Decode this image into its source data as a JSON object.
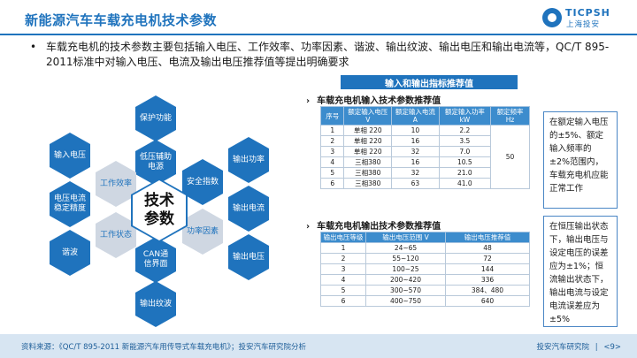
{
  "header": {
    "title": "新能源汽车车载充电机技术参数",
    "logo_text": "TICPSH",
    "logo_subtext": "上海投安",
    "accent_color": "#1f73bd"
  },
  "bullet": {
    "symbol": "•",
    "text": "车载充电机的技术参数主要包括输入电压、工作效率、功率因素、谐波、输出纹波、输出电压和输出电流等，QC/T 895-2011标准中对输入电压、电流及输出电压推荐值等提出明确要求"
  },
  "hexagons": {
    "center": "技术参数",
    "items": [
      "保护功能",
      "输入电压",
      "低压辅助电源",
      "输出功率",
      "工作效率",
      "电压电流稳定精度",
      "安全指数",
      "输出电流",
      "工作状态",
      "功率因素",
      "谐波",
      "CAN通信界面",
      "输出电压",
      "输出纹波"
    ]
  },
  "section_banner": "输入和输出指标推荐值",
  "input_table": {
    "title": "车载充电机输入技术参数推荐值",
    "headers": [
      "序号",
      "额定输入电压 V",
      "额定输入电流 A",
      "额定输入功率 kW",
      "额定频率 Hz"
    ],
    "rows": [
      [
        "1",
        "单相 220",
        "10",
        "2.2"
      ],
      [
        "2",
        "单相 220",
        "16",
        "3.5"
      ],
      [
        "3",
        "单相 220",
        "32",
        "7.0"
      ],
      [
        "4",
        "三相380",
        "16",
        "10.5"
      ],
      [
        "5",
        "三相380",
        "32",
        "21.0"
      ],
      [
        "6",
        "三相380",
        "63",
        "41.0"
      ]
    ],
    "frequency": "50",
    "note": "在额定输入电压的±5%、额定输入频率的±2%范围内，车载充电机应能正常工作"
  },
  "output_table": {
    "title": "车载充电机输出技术参数推荐值",
    "headers": [
      "输出电压等级",
      "输出电压范围 V",
      "输出电压推荐值"
    ],
    "rows": [
      [
        "1",
        "24~65",
        "48"
      ],
      [
        "2",
        "55~120",
        "72"
      ],
      [
        "3",
        "100~25",
        "144"
      ],
      [
        "4",
        "200~420",
        "336"
      ],
      [
        "5",
        "300~570",
        "384、480"
      ],
      [
        "6",
        "400~750",
        "640"
      ]
    ],
    "note": "在恒压输出状态下，输出电压与设定电压的误差应为±1%；恒流输出状态下，输出电流与设定电流误差应为±5%"
  },
  "footer": {
    "source": "资料来源：《QC/T 895-2011 新能源汽车用传导式车载充电机》；投安汽车研究院分析",
    "org": "投安汽车研究院",
    "separator": "|",
    "page": "<9>"
  }
}
